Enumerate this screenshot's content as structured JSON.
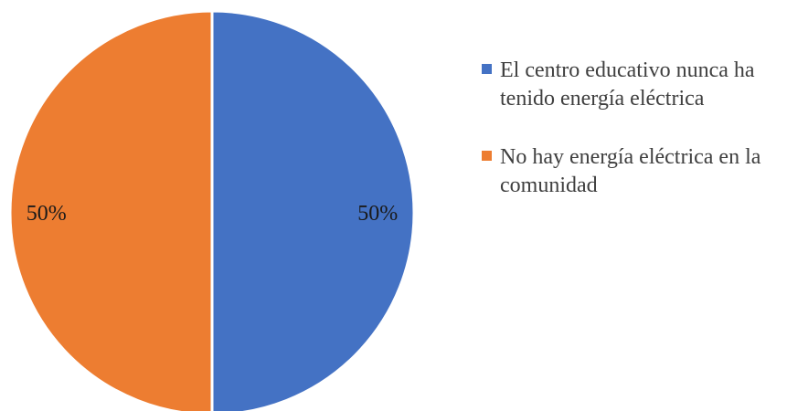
{
  "chart_data": {
    "type": "pie",
    "title": "",
    "categories": [
      "El centro educativo nunca ha tenido energía eléctrica",
      "No hay energía eléctrica en la comunidad"
    ],
    "values": [
      50,
      50
    ],
    "data_labels": [
      "50%",
      "50%"
    ],
    "colors": [
      "#4472C4",
      "#ED7D31"
    ],
    "legend_position": "right",
    "start_angle_deg": 0,
    "direction": "clockwise"
  }
}
